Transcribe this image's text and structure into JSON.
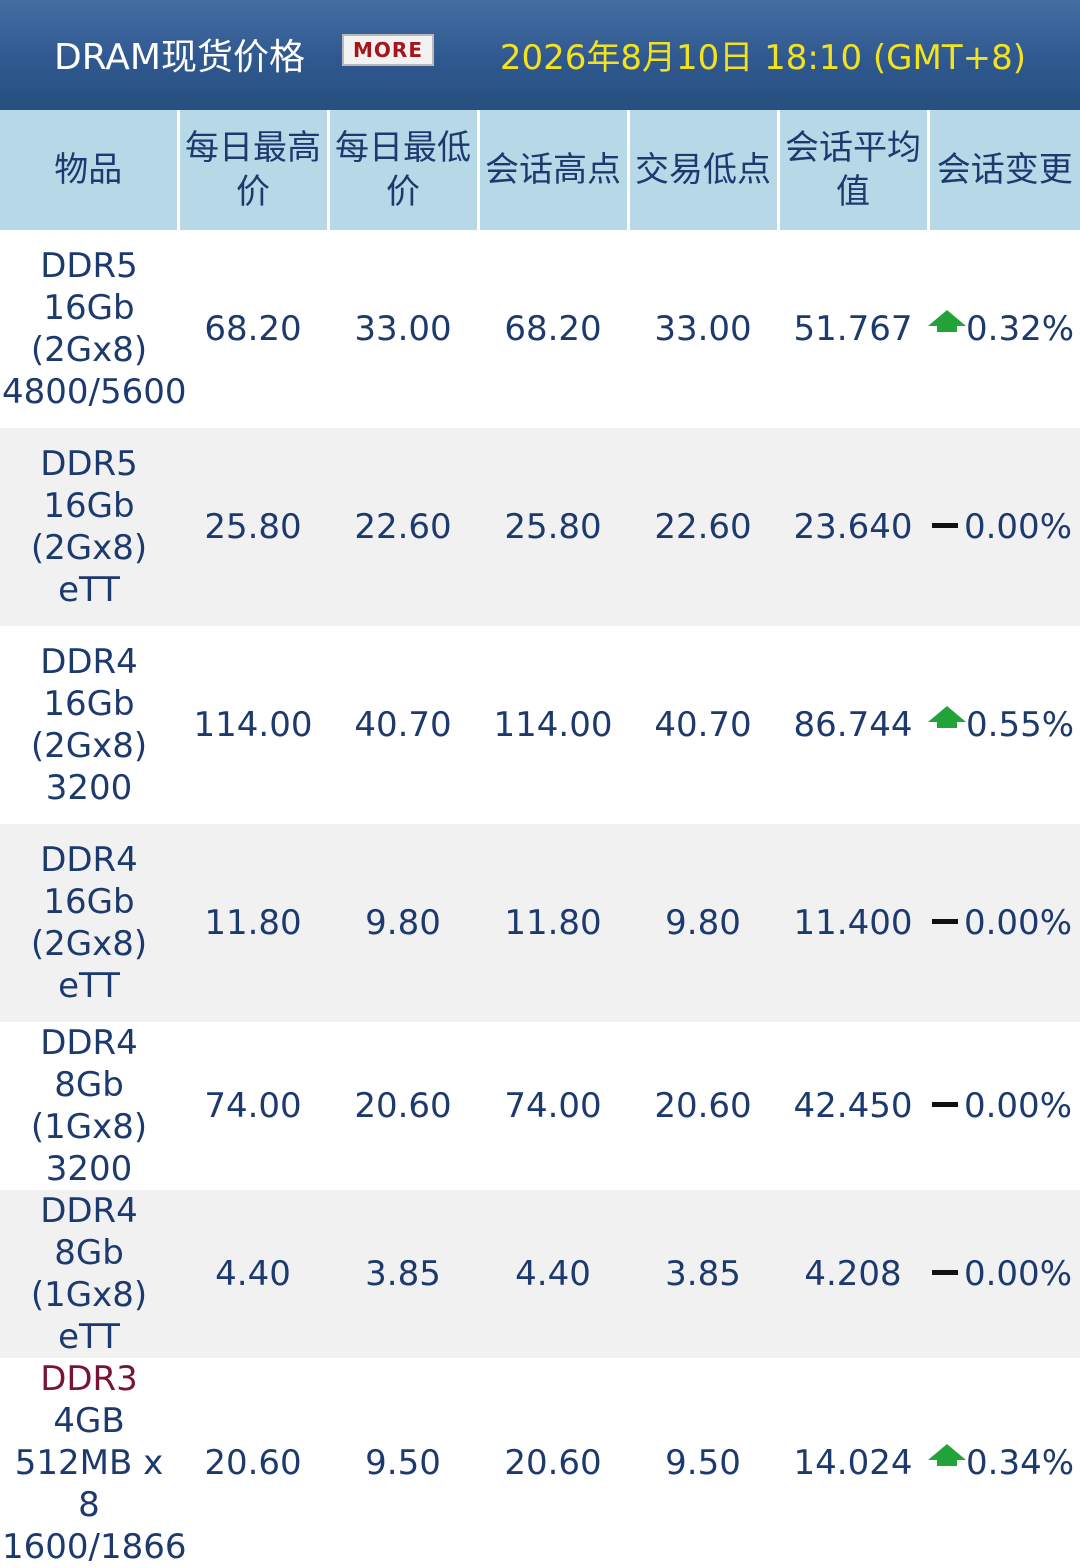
{
  "header": {
    "title": "DRAM现货价格",
    "more_label": "MORE",
    "datetime": "2026年8月10日 18:10 (GMT+8)"
  },
  "table": {
    "columns": [
      "物品",
      "每日最高价",
      "每日最低价",
      "会话高点",
      "交易低点",
      "会话平均值",
      "会话变更"
    ],
    "rows": [
      {
        "item": "DDR5 16Gb (2Gx8) 4800/5600",
        "daily_high": "68.20",
        "daily_low": "33.00",
        "session_high": "68.20",
        "session_low": "33.00",
        "session_avg": "51.767",
        "change": "0.32%",
        "trend": "up"
      },
      {
        "item": "DDR5 16Gb (2Gx8) eTT",
        "daily_high": "25.80",
        "daily_low": "22.60",
        "session_high": "25.80",
        "session_low": "22.60",
        "session_avg": "23.640",
        "change": "0.00%",
        "trend": "flat"
      },
      {
        "item": "DDR4 16Gb (2Gx8) 3200",
        "daily_high": "114.00",
        "daily_low": "40.70",
        "session_high": "114.00",
        "session_low": "40.70",
        "session_avg": "86.744",
        "change": "0.55%",
        "trend": "up"
      },
      {
        "item": "DDR4 16Gb (2Gx8) eTT",
        "daily_high": "11.80",
        "daily_low": "9.80",
        "session_high": "11.80",
        "session_low": "9.80",
        "session_avg": "11.400",
        "change": "0.00%",
        "trend": "flat"
      },
      {
        "item": "DDR4 8Gb (1Gx8) 3200",
        "daily_high": "74.00",
        "daily_low": "20.60",
        "session_high": "74.00",
        "session_low": "20.60",
        "session_avg": "42.450",
        "change": "0.00%",
        "trend": "flat"
      },
      {
        "item": "DDR4 8Gb (1Gx8) eTT",
        "daily_high": "4.40",
        "daily_low": "3.85",
        "session_high": "4.40",
        "session_low": "3.85",
        "session_avg": "4.208",
        "change": "0.00%",
        "trend": "flat"
      },
      {
        "item_link": "DDR3",
        "item_rest": "4GB 512MB x 8 1600/1866",
        "daily_high": "20.60",
        "daily_low": "9.50",
        "session_high": "20.60",
        "session_low": "9.50",
        "session_avg": "14.024",
        "change": "0.34%",
        "trend": "up"
      }
    ]
  },
  "colors": {
    "header_bg": "#2f5890",
    "date_text": "#f2e21f",
    "column_header_bg": "#b6d8e7",
    "text": "#1d3a6e",
    "up_arrow": "#22a33a",
    "row_alt_bg": "#f1f1f1",
    "more_text": "#a4161a"
  },
  "icons": {
    "up": "up-arrow-icon",
    "flat": "flat-dash-icon"
  }
}
